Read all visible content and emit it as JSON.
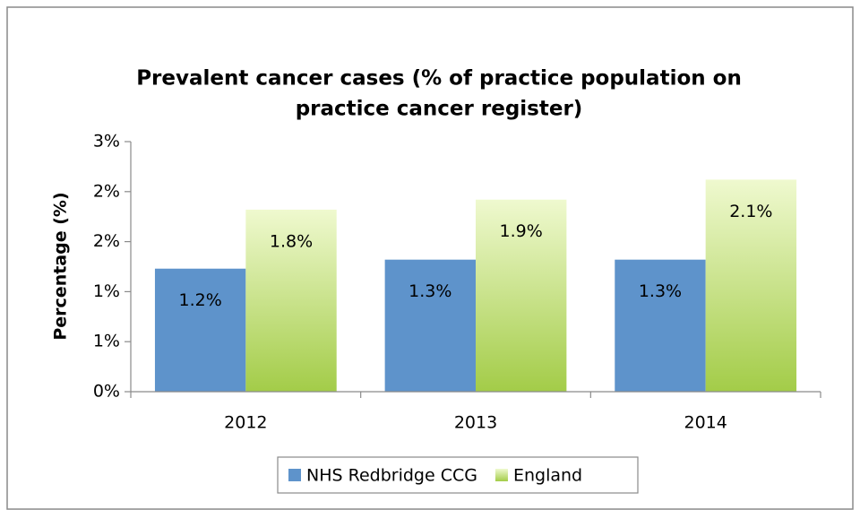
{
  "chart_data": {
    "type": "bar",
    "title": [
      "Prevalent cancer cases (% of practice population on",
      "practice cancer register)"
    ],
    "y_label": "Percentage (%)",
    "categories": [
      "2012",
      "2013",
      "2014"
    ],
    "series": [
      {
        "name": "NHS Redbridge CCG",
        "color": "#5e93cb",
        "values": [
          1.23,
          1.32,
          1.32
        ],
        "value_labels": [
          "1.2%",
          "1.3%",
          "1.3%"
        ]
      },
      {
        "name": "England",
        "color": "#a3cc48",
        "values": [
          1.82,
          1.92,
          2.12
        ],
        "value_labels": [
          "1.8%",
          "1.9%",
          "2.1%"
        ]
      }
    ],
    "ylim": [
      0,
      2.5
    ],
    "yticks": [
      {
        "value": 0,
        "label": "0%"
      },
      {
        "value": 0.5,
        "label": "1%"
      },
      {
        "value": 1,
        "label": "1%"
      },
      {
        "value": 1.5,
        "label": "2%"
      },
      {
        "value": 2,
        "label": "2%"
      },
      {
        "value": 2.5,
        "label": "3%"
      }
    ],
    "legend": "bottom",
    "grid": false
  }
}
